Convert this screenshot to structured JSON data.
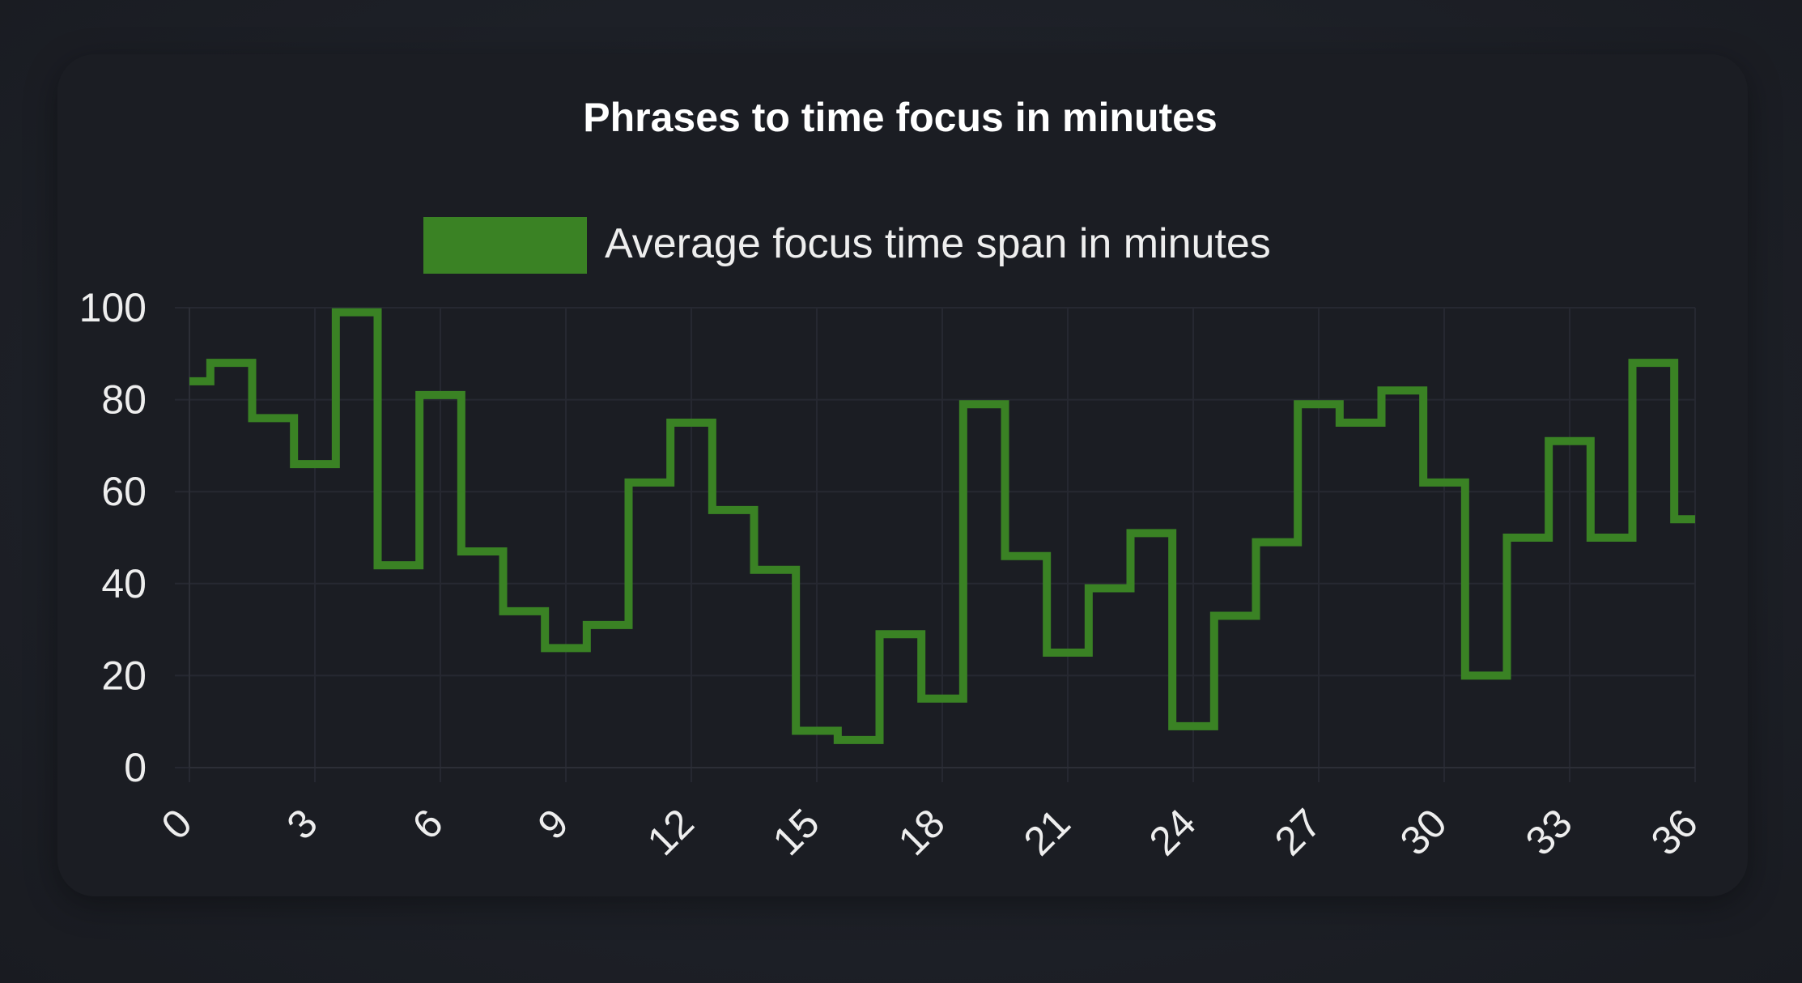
{
  "chart_data": {
    "type": "line",
    "step": true,
    "title": "Phrases to time focus in minutes",
    "xlabel": "",
    "ylabel": "",
    "xlim": [
      0,
      36
    ],
    "ylim": [
      0,
      100
    ],
    "x_ticks": [
      "0",
      "3",
      "6",
      "9",
      "12",
      "15",
      "18",
      "21",
      "24",
      "27",
      "30",
      "33",
      "36"
    ],
    "y_ticks": [
      "0",
      "20",
      "40",
      "60",
      "80",
      "100"
    ],
    "grid": true,
    "legend_position": "top-center",
    "series": [
      {
        "name": "Average focus time span in minutes",
        "color": "#3a8224",
        "x": [
          0,
          1,
          2,
          3,
          4,
          5,
          6,
          7,
          8,
          9,
          10,
          11,
          12,
          13,
          14,
          15,
          16,
          17,
          18,
          19,
          20,
          21,
          22,
          23,
          24,
          25,
          26,
          27,
          28,
          29,
          30,
          31,
          32,
          33,
          34,
          35,
          36
        ],
        "values": [
          84,
          88,
          76,
          66,
          99,
          44,
          81,
          47,
          34,
          26,
          31,
          62,
          75,
          56,
          43,
          8,
          6,
          29,
          15,
          79,
          46,
          25,
          39,
          51,
          9,
          33,
          49,
          79,
          75,
          82,
          62,
          20,
          50,
          71,
          50,
          88,
          54
        ]
      }
    ]
  }
}
